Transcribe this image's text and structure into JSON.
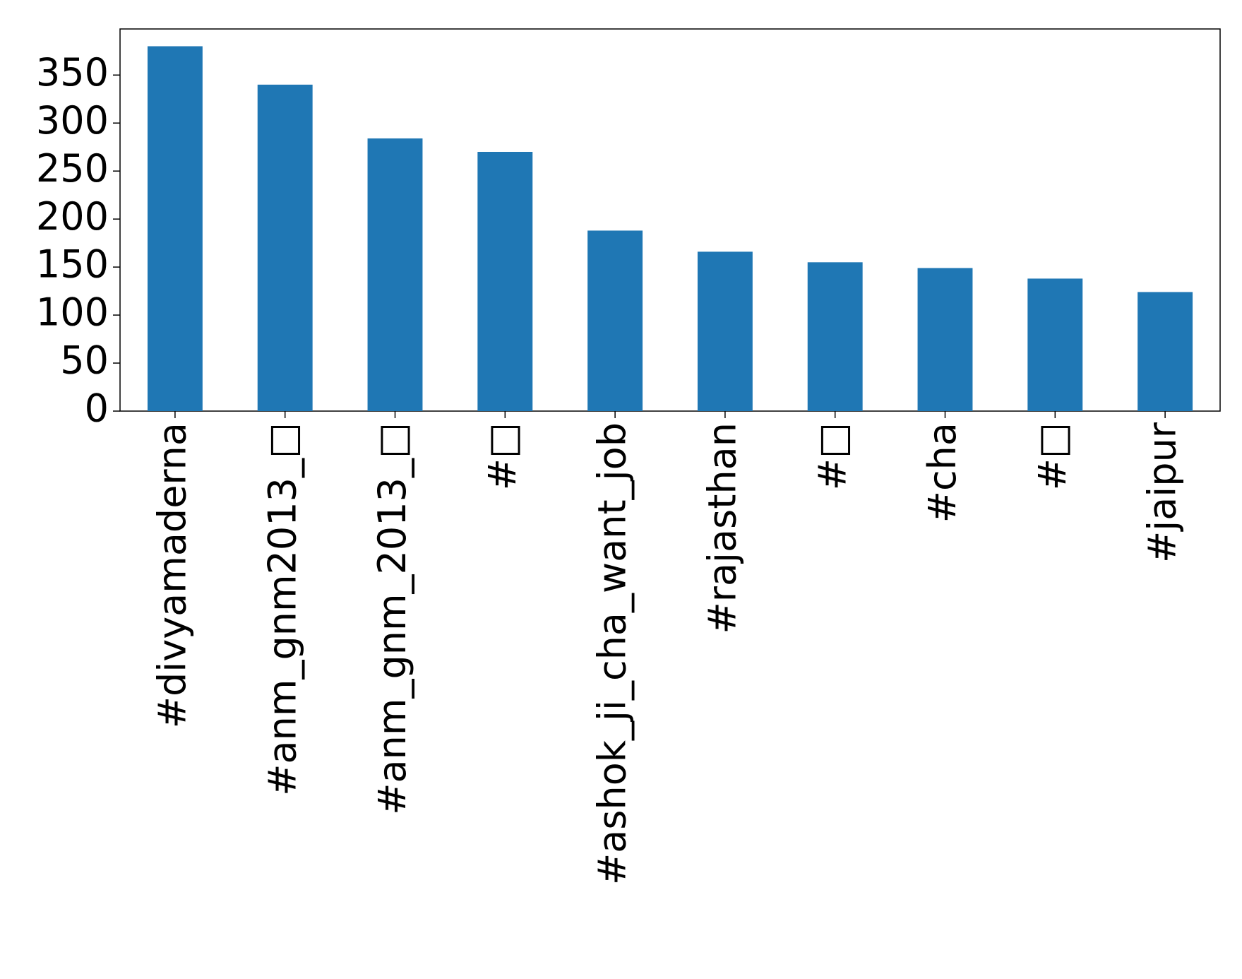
{
  "chart_data": {
    "type": "bar",
    "categories": [
      "#divyamaderna",
      "#anm_gnm2013_□",
      "#anm_gnm_2013_□",
      "#□",
      "#ashok_ji_cha_want_job",
      "#rajasthan",
      "#□",
      "#cha",
      "#□",
      "#jaipur"
    ],
    "values": [
      380,
      340,
      284,
      270,
      188,
      166,
      155,
      149,
      138,
      124
    ],
    "color": "#1f77b4",
    "ylim": [
      0,
      398
    ],
    "yticks": [
      0,
      50,
      100,
      150,
      200,
      250,
      300,
      350
    ],
    "grid": false
  }
}
